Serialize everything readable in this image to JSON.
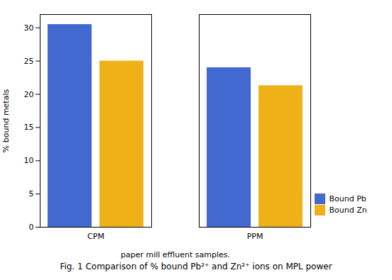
{
  "chart_data": {
    "type": "bar",
    "title": "Fig. 1 Comparison of % bound Pb²⁺ and Zn²⁺ ions on MPL power",
    "xlabel": "paper mill effluent samples.",
    "ylabel": "% bound metals",
    "categories": [
      "CPM",
      "PPM"
    ],
    "series": [
      {
        "name": "Bound Pb",
        "values": [
          30.5,
          24.0
        ]
      },
      {
        "name": "Bound Zn",
        "values": [
          25.0,
          21.3
        ]
      }
    ],
    "ylim": [
      0,
      32
    ],
    "yticks": [
      0,
      5,
      10,
      15,
      20,
      25,
      30
    ],
    "legend": "lower right",
    "grid": false
  }
}
